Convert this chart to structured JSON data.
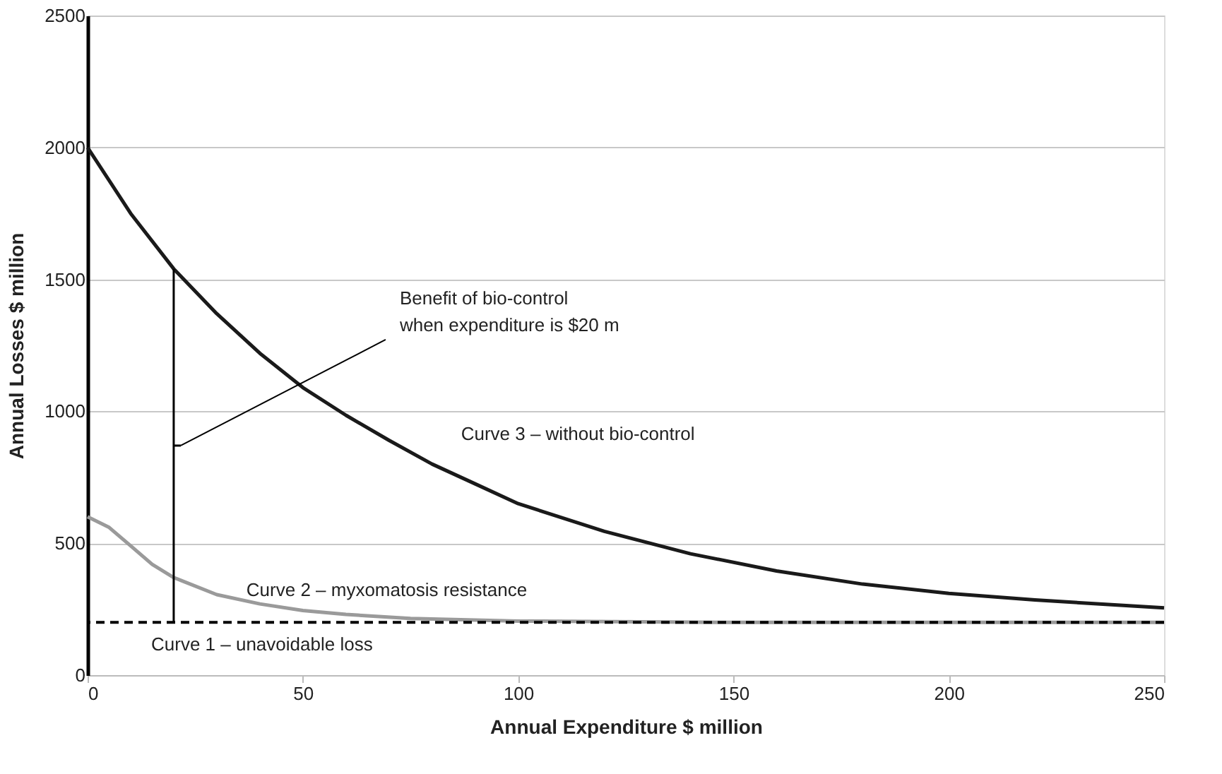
{
  "chart_data": {
    "type": "line",
    "xlabel": "Annual Expenditure $ million",
    "ylabel": "Annual Losses $ million",
    "xlim": [
      0,
      250
    ],
    "xticks": [
      0,
      50,
      100,
      150,
      200,
      250
    ],
    "ylim": [
      0,
      2500
    ],
    "yticks": [
      0,
      500,
      1000,
      1500,
      2000,
      2500
    ],
    "grid": "y",
    "marker": "none",
    "series": [
      {
        "name": "Curve 3 – without bio-control",
        "color": "#1a1a1a",
        "x": [
          0,
          10,
          20,
          30,
          40,
          50,
          60,
          70,
          80,
          90,
          100,
          120,
          140,
          160,
          180,
          200,
          220,
          250
        ],
        "values": [
          2000,
          1750,
          1540,
          1370,
          1220,
          1090,
          985,
          890,
          800,
          725,
          650,
          545,
          460,
          395,
          345,
          310,
          285,
          255
        ]
      },
      {
        "name": "Curve 2 – myxomatosis resistance",
        "color": "#9a9a9a",
        "x": [
          0,
          5,
          10,
          15,
          20,
          30,
          40,
          50,
          60,
          75,
          100,
          150,
          200,
          250
        ],
        "values": [
          600,
          560,
          490,
          420,
          370,
          305,
          270,
          245,
          230,
          215,
          205,
          200,
          200,
          200
        ]
      }
    ],
    "ref_lines": [
      {
        "axis": "y",
        "value": 200,
        "label": "Curve 1 – unavoidable loss",
        "color": "#000000",
        "line_style": "dashed"
      },
      {
        "axis": "x",
        "value": 20,
        "label": "Benefit of bio-control\nwhen expenditure is $20 m",
        "color": "#000000"
      }
    ]
  }
}
